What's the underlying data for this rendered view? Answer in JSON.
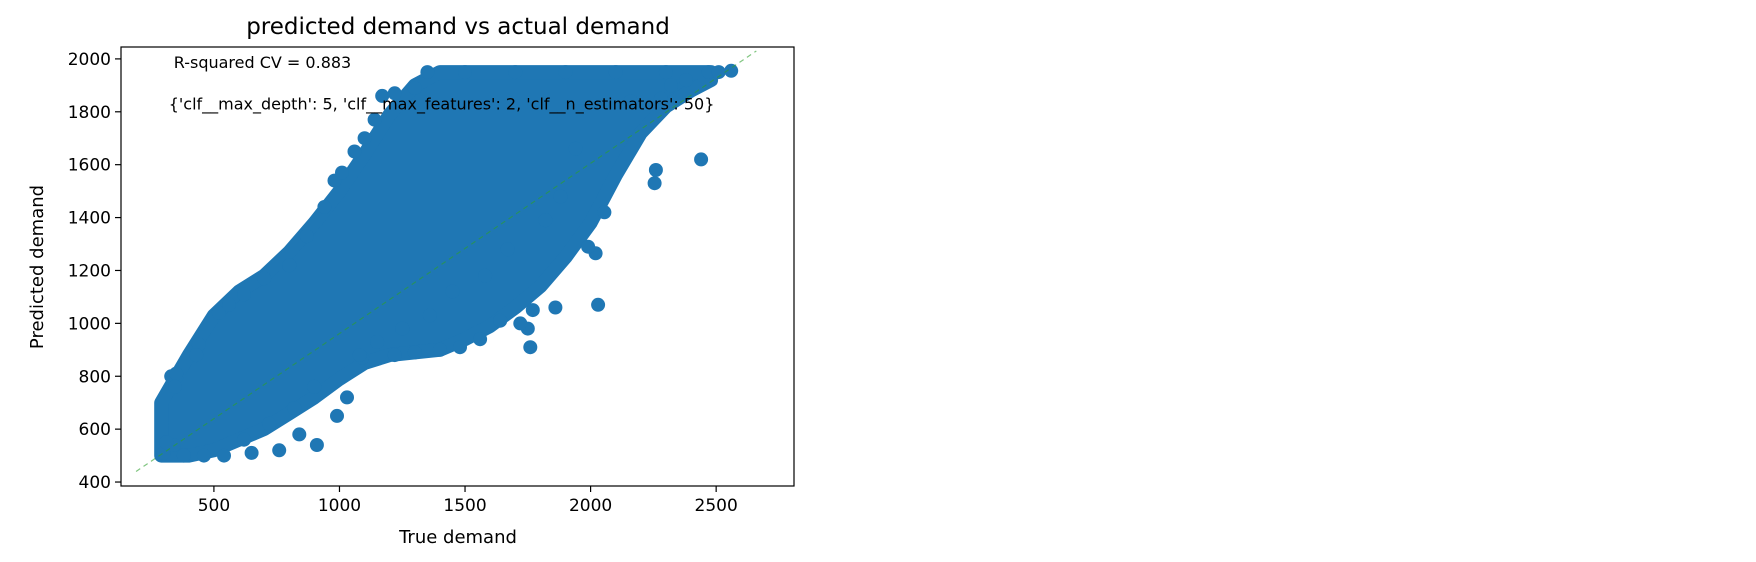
{
  "chart_data": {
    "type": "scatter",
    "title": "predicted demand vs actual demand",
    "xlabel": "True demand",
    "ylabel": "Predicted demand",
    "xlim": [
      130,
      2810
    ],
    "ylim": [
      385,
      2045
    ],
    "xticks": [
      500,
      1000,
      1500,
      2000,
      2500
    ],
    "yticks": [
      400,
      600,
      800,
      1000,
      1200,
      1400,
      1600,
      1800,
      2000
    ],
    "grid": false,
    "marker_color": "#1f77b4",
    "reference_line": {
      "x": [
        190,
        2660
      ],
      "y": [
        440,
        2030
      ],
      "color": "#2ca02c",
      "style": "dashed"
    },
    "annotations": [
      {
        "text": "R-squared CV = 0.883",
        "x": 340,
        "y": 1965
      },
      {
        "text": "{'clf__max_depth': 5, 'clf__max_features': 2, 'clf__n_estimators': 50}",
        "x": 320,
        "y": 1808
      }
    ],
    "point_cloud_band": [
      [
        290,
        500,
        700
      ],
      [
        400,
        500,
        880
      ],
      [
        500,
        520,
        1030
      ],
      [
        600,
        560,
        1120
      ],
      [
        700,
        600,
        1180
      ],
      [
        800,
        660,
        1270
      ],
      [
        900,
        720,
        1380
      ],
      [
        1000,
        790,
        1500
      ],
      [
        1100,
        850,
        1640
      ],
      [
        1200,
        880,
        1790
      ],
      [
        1300,
        890,
        1900
      ],
      [
        1400,
        900,
        1950
      ],
      [
        1500,
        940,
        1950
      ],
      [
        1600,
        990,
        1950
      ],
      [
        1700,
        1060,
        1950
      ],
      [
        1800,
        1140,
        1950
      ],
      [
        1900,
        1250,
        1950
      ],
      [
        2000,
        1380,
        1950
      ],
      [
        2100,
        1560,
        1950
      ],
      [
        2200,
        1720,
        1950
      ],
      [
        2300,
        1820,
        1950
      ],
      [
        2400,
        1880,
        1950
      ],
      [
        2480,
        1920,
        1950
      ]
    ],
    "points": [
      [
        300,
        510
      ],
      [
        340,
        540
      ],
      [
        310,
        550
      ],
      [
        330,
        800
      ],
      [
        350,
        810
      ],
      [
        345,
        760
      ],
      [
        440,
        920
      ],
      [
        430,
        880
      ],
      [
        520,
        1040
      ],
      [
        560,
        1070
      ],
      [
        620,
        1110
      ],
      [
        700,
        1170
      ],
      [
        800,
        1220
      ],
      [
        870,
        1330
      ],
      [
        940,
        1440
      ],
      [
        980,
        1540
      ],
      [
        1010,
        1570
      ],
      [
        1060,
        1650
      ],
      [
        1100,
        1700
      ],
      [
        1140,
        1770
      ],
      [
        1170,
        1860
      ],
      [
        1220,
        1870
      ],
      [
        1300,
        1890
      ],
      [
        1350,
        1950
      ],
      [
        1500,
        1950
      ],
      [
        1700,
        1950
      ],
      [
        1900,
        1950
      ],
      [
        2100,
        1950
      ],
      [
        2300,
        1950
      ],
      [
        2470,
        1950
      ],
      [
        2560,
        1955
      ],
      [
        2510,
        1950
      ],
      [
        2440,
        1620
      ],
      [
        2260,
        1580
      ],
      [
        2255,
        1530
      ],
      [
        2055,
        1420
      ],
      [
        2030,
        1070
      ],
      [
        2020,
        1265
      ],
      [
        1990,
        1290
      ],
      [
        1860,
        1060
      ],
      [
        1770,
        1050
      ],
      [
        1750,
        980
      ],
      [
        1760,
        910
      ],
      [
        1720,
        1000
      ],
      [
        1640,
        1010
      ],
      [
        1560,
        940
      ],
      [
        1480,
        910
      ],
      [
        1400,
        900
      ],
      [
        1300,
        890
      ],
      [
        1220,
        880
      ],
      [
        1090,
        870
      ],
      [
        1030,
        720
      ],
      [
        910,
        540
      ],
      [
        990,
        650
      ],
      [
        840,
        580
      ],
      [
        760,
        520
      ],
      [
        650,
        510
      ],
      [
        540,
        500
      ],
      [
        460,
        500
      ],
      [
        380,
        500
      ],
      [
        2160,
        1840
      ],
      [
        2280,
        1850
      ],
      [
        2320,
        1900
      ],
      [
        2380,
        1920
      ],
      [
        1940,
        1660
      ],
      [
        1880,
        1480
      ],
      [
        1820,
        1390
      ],
      [
        1670,
        1280
      ],
      [
        1580,
        1180
      ],
      [
        1450,
        1120
      ],
      [
        1360,
        1030
      ],
      [
        1250,
        980
      ],
      [
        1150,
        930
      ],
      [
        1080,
        880
      ],
      [
        900,
        760
      ],
      [
        820,
        680
      ],
      [
        720,
        620
      ],
      [
        620,
        560
      ]
    ]
  }
}
